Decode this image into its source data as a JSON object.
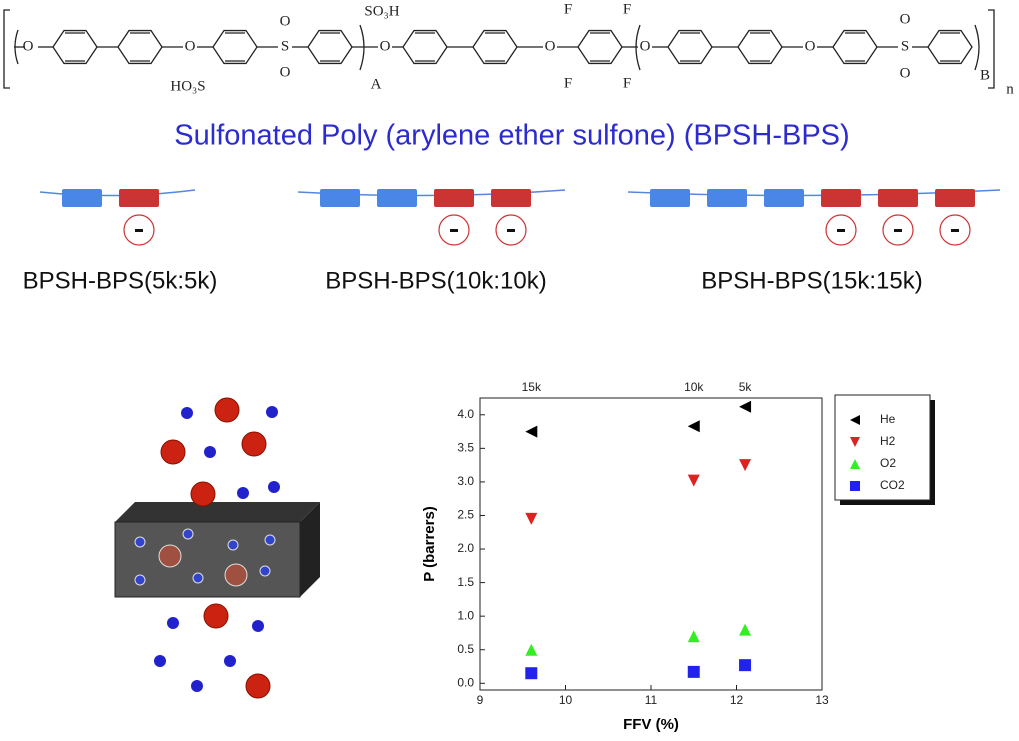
{
  "structure_labels": [
    "O",
    "O",
    "S",
    "O",
    "O",
    "SO₃H",
    "HO₃S",
    "A",
    "O",
    "O",
    "F",
    "F",
    "F",
    "F",
    "O",
    "O",
    "S",
    "O",
    "O",
    "B",
    "n"
  ],
  "title": "Sulfonated Poly (arylene ether sulfone) (BPSH-BPS)",
  "block_labels": [
    "BPSH-BPS(5k:5k)",
    "BPSH-BPS(10k:10k)",
    "BPSH-BPS(15k:15k)"
  ],
  "chart_data": {
    "type": "scatter",
    "xlabel": "FFV (%)",
    "ylabel": "P (barrers)",
    "x": [
      9.6,
      11.5,
      12.1
    ],
    "top_labels": [
      {
        "value": 9.6,
        "label": "15k"
      },
      {
        "value": 11.5,
        "label": "10k"
      },
      {
        "value": 12.1,
        "label": "5k"
      }
    ],
    "series": [
      {
        "name": "He",
        "color": "#000000",
        "marker": "triangle-left",
        "values": [
          3.75,
          3.83,
          4.12
        ]
      },
      {
        "name": "H2",
        "color": "#dd2222",
        "marker": "triangle-down",
        "values": [
          2.45,
          3.02,
          3.25
        ]
      },
      {
        "name": "O2",
        "color": "#33ee22",
        "marker": "triangle-up",
        "values": [
          0.5,
          0.7,
          0.8
        ]
      },
      {
        "name": "CO2",
        "color": "#2222ee",
        "marker": "square",
        "values": [
          0.15,
          0.17,
          0.27
        ]
      }
    ],
    "xlim": [
      9,
      13
    ],
    "ylim": [
      -0.1,
      4.25
    ],
    "xticks": [
      9,
      10,
      11,
      12,
      13
    ],
    "yticks": [
      {
        "value": 0,
        "label": "0.0"
      },
      {
        "value": 0.5,
        "label": "0.5"
      },
      {
        "value": 1,
        "label": "1.0"
      },
      {
        "value": 1.5,
        "label": "1.5"
      },
      {
        "value": 2,
        "label": "2.0"
      },
      {
        "value": 2.5,
        "label": "2.5"
      },
      {
        "value": 3,
        "label": "3.0"
      },
      {
        "value": 3.5,
        "label": "3.5"
      },
      {
        "value": 4,
        "label": "4.0"
      }
    ],
    "legend": "upper right"
  }
}
